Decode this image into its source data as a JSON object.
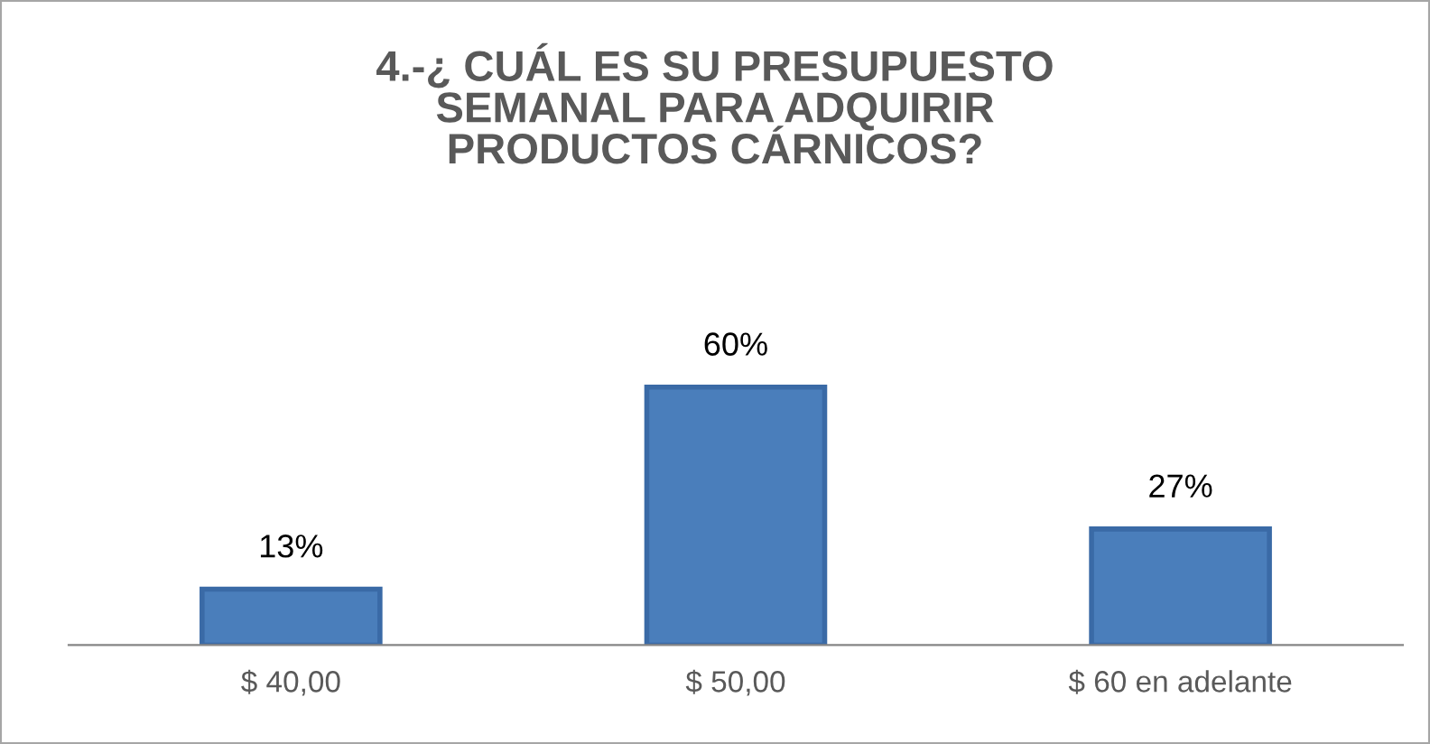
{
  "chart_data": {
    "type": "bar",
    "title": "4.-¿ CUÁL ES SU PRESUPUESTO\nSEMANAL PARA ADQUIRIR\nPRODUCTOS CÁRNICOS?",
    "categories": [
      "$ 40,00",
      "$ 50,00",
      "$ 60 en adelante"
    ],
    "values": [
      13,
      60,
      27
    ],
    "value_labels": [
      "13%",
      "60%",
      "27%"
    ],
    "color": "#4a7ebb",
    "grid": false,
    "legend": false
  }
}
